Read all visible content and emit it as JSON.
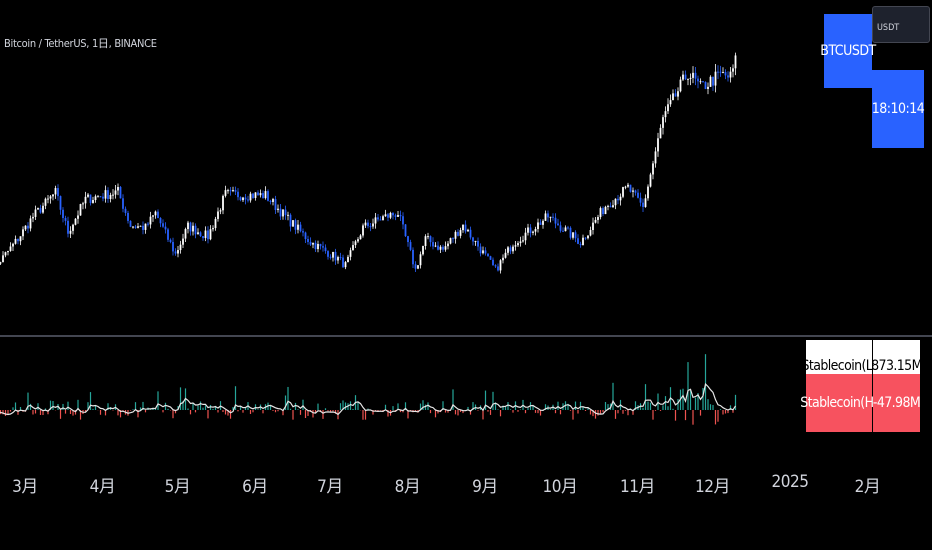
{
  "header": {
    "title": "Bitcoin / TetherUS, 1日, BINANCE"
  },
  "badges": {
    "symbol": "BTCUSDT",
    "quote_currency": "USDT",
    "countdown": "18:10:14"
  },
  "indicator_table": {
    "row1": {
      "label": "Stablecoin(L)",
      "value": "873.15M"
    },
    "row2": {
      "label": "Stablecoin(H)",
      "value": "-47.98M"
    }
  },
  "colors": {
    "background": "#000000",
    "candle_up": "#ffffff",
    "candle_down": "#2962ff",
    "hist_pos": "#26a69a",
    "hist_neg": "#ef5350",
    "hist_line": "#e6e6e6",
    "badge_blue": "#2962ff",
    "table_red": "#f7525f"
  },
  "chart_data": [
    {
      "type": "candlestick",
      "title": "Bitcoin / TetherUS, 1日, BINANCE",
      "x_tick_labels": [
        "3月",
        "4月",
        "5月",
        "6月",
        "7月",
        "8月",
        "9月",
        "10月",
        "11月",
        "12月",
        "2025",
        "2月"
      ],
      "x_ticks_months": [
        "2024-03",
        "2024-04",
        "2024-05",
        "2024-06",
        "2024-07",
        "2024-08",
        "2024-09",
        "2024-10",
        "2024-11",
        "2024-12",
        "2025-01",
        "2025-02"
      ],
      "close_path": [
        [
          "2024-02-15",
          51800
        ],
        [
          "2024-02-28",
          61000
        ],
        [
          "2024-03-05",
          66000
        ],
        [
          "2024-03-14",
          71400
        ],
        [
          "2024-03-19",
          62500
        ],
        [
          "2024-03-26",
          69900
        ],
        [
          "2024-04-08",
          71600
        ],
        [
          "2024-04-13",
          64000
        ],
        [
          "2024-04-19",
          63500
        ],
        [
          "2024-04-23",
          66800
        ],
        [
          "2024-05-01",
          57500
        ],
        [
          "2024-05-06",
          63800
        ],
        [
          "2024-05-14",
          61500
        ],
        [
          "2024-05-21",
          71000
        ],
        [
          "2024-06-06",
          70800
        ],
        [
          "2024-06-14",
          66000
        ],
        [
          "2024-06-24",
          60300
        ],
        [
          "2024-07-05",
          56500
        ],
        [
          "2024-07-08",
          55000
        ],
        [
          "2024-07-15",
          63500
        ],
        [
          "2024-07-23",
          65800
        ],
        [
          "2024-07-29",
          66800
        ],
        [
          "2024-08-05",
          54000
        ],
        [
          "2024-08-09",
          61000
        ],
        [
          "2024-08-16",
          58500
        ],
        [
          "2024-08-24",
          64100
        ],
        [
          "2024-09-06",
          53900
        ],
        [
          "2024-09-13",
          60000
        ],
        [
          "2024-09-27",
          66000
        ],
        [
          "2024-10-10",
          60200
        ],
        [
          "2024-10-20",
          68400
        ],
        [
          "2024-10-29",
          72500
        ],
        [
          "2024-11-04",
          68000
        ],
        [
          "2024-11-12",
          88000
        ],
        [
          "2024-11-22",
          98500
        ],
        [
          "2024-11-27",
          95000
        ],
        [
          "2024-12-05",
          98000
        ],
        [
          "2024-12-09",
          97400
        ],
        [
          "2024-12-11",
          101000
        ]
      ],
      "y_range": [
        49000,
        104000
      ]
    },
    {
      "type": "bar+line",
      "series": [
        {
          "name": "Stablecoin(L)",
          "type": "histogram"
        },
        {
          "name": "Stablecoin(H)",
          "type": "line"
        }
      ],
      "note_values": {
        "Stablecoin(L)": "873.15M",
        "Stablecoin(H)": "-47.98M"
      }
    }
  ]
}
